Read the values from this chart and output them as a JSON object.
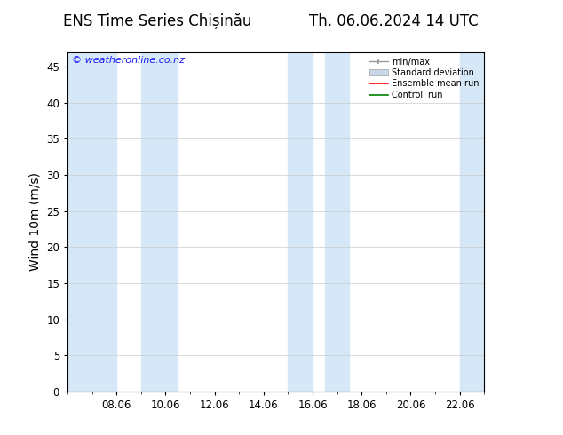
{
  "title": "ENS Time Series Chișinău",
  "title2": "Th. 06.06.2024 14 UTC",
  "ylabel": "Wind 10m (m/s)",
  "watermark": "© weatheronline.co.nz",
  "xlim_start": 6.0,
  "xlim_end": 23.0,
  "ylim": [
    0,
    47
  ],
  "yticks": [
    0,
    5,
    10,
    15,
    20,
    25,
    30,
    35,
    40,
    45
  ],
  "xtick_positions": [
    8.0,
    10.0,
    12.0,
    14.0,
    16.0,
    18.0,
    20.0,
    22.0
  ],
  "xtick_labels": [
    "08.06",
    "10.06",
    "12.06",
    "14.06",
    "16.06",
    "18.06",
    "20.06",
    "22.06"
  ],
  "shaded_bands": [
    {
      "xmin": 6.0,
      "xmax": 8.0,
      "color": "#d6e8f7"
    },
    {
      "xmin": 9.0,
      "xmax": 10.5,
      "color": "#d6e8f7"
    },
    {
      "xmin": 15.0,
      "xmax": 16.0,
      "color": "#d6e8f7"
    },
    {
      "xmin": 16.5,
      "xmax": 17.5,
      "color": "#d6e8f7"
    },
    {
      "xmin": 22.0,
      "xmax": 23.0,
      "color": "#d6e8f7"
    }
  ],
  "bg_color": "#ffffff",
  "plot_bg_color": "#ffffff",
  "title_fontsize": 12,
  "tick_fontsize": 8.5,
  "label_fontsize": 10,
  "watermark_color": "#1a1aff",
  "watermark_fontsize": 8
}
